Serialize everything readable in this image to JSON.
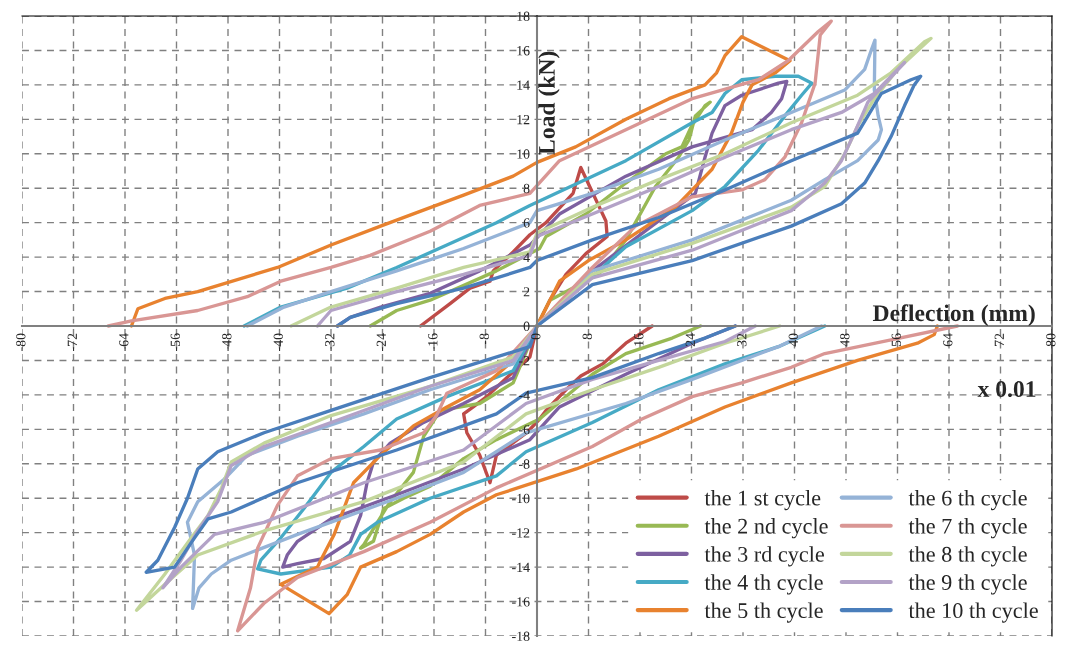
{
  "chart_data": {
    "type": "line",
    "xlabel": "Deflection (mm)",
    "ylabel": "Load (kN)",
    "annotations": [
      "x 0.01"
    ],
    "xlim": [
      -80,
      80
    ],
    "ylim": [
      -18,
      18
    ],
    "xticks": [
      -80,
      -72,
      -64,
      -56,
      -48,
      -40,
      -32,
      -24,
      -16,
      -8,
      0,
      8,
      16,
      24,
      32,
      40,
      48,
      56,
      64,
      72,
      80
    ],
    "yticks": [
      -18,
      -16,
      -14,
      -12,
      -10,
      -8,
      -6,
      -4,
      -2,
      0,
      2,
      4,
      6,
      8,
      10,
      12,
      14,
      16,
      18
    ],
    "grid": true,
    "legend": "bottom right",
    "series": [
      {
        "name": "the 1 st cycle",
        "color": "#be4b48",
        "x": [
          0,
          2,
          4.5,
          7.6,
          10.9,
          10.7,
          6.8,
          5.6,
          1.4,
          -1.1,
          -3.7,
          -6.8,
          -7.3,
          -10.4,
          -13.5,
          -18.1,
          null,
          0,
          -1.1,
          -4.7,
          -7.8,
          -9.9,
          -11.4,
          -10.9,
          -8.9,
          -7.3,
          -6.3,
          -1.6,
          0.4,
          1.4,
          4.5,
          6.8,
          10.2,
          13.8,
          17.9
        ],
        "values": [
          0,
          1.5,
          3.0,
          4.2,
          5.2,
          6.1,
          9.2,
          7.7,
          6.0,
          5.3,
          4.3,
          3.2,
          2.6,
          2.2,
          1.3,
          0,
          null,
          0,
          -1.8,
          -3,
          -4.1,
          -4.7,
          -5.1,
          -6.2,
          -7.5,
          -9.1,
          -7.5,
          -6.2,
          -5.4,
          -4.9,
          -3.7,
          -2.9,
          -2.2,
          -1.0,
          0
        ]
      },
      {
        "name": "the 2 nd cycle",
        "color": "#98b954",
        "x": [
          0,
          2,
          9.6,
          13.8,
          18.4,
          22,
          23.6,
          24.6,
          26.9,
          26.1,
          24,
          22.5,
          20,
          13.8,
          7.6,
          1.4,
          0.4,
          -6.3,
          -16.6,
          -21.8,
          -25.9,
          null,
          0,
          -3.7,
          -8.9,
          -15,
          -17.6,
          -19.2,
          -22.8,
          -24.8,
          -26.9,
          -27.4,
          -25.4,
          -23.8,
          -20.7,
          -16.6,
          -11.4,
          -6.3,
          0.4,
          8.6,
          13.8,
          21,
          25.4
        ],
        "values": [
          0,
          1.5,
          3.0,
          5.0,
          8.1,
          9.8,
          10.8,
          12.2,
          13.0,
          12.8,
          11.6,
          10.4,
          10,
          8.3,
          6.5,
          5.2,
          4.5,
          3.2,
          1.5,
          0.9,
          0,
          null,
          0,
          -3.3,
          -4.5,
          -4.9,
          -6.4,
          -8.5,
          -10.2,
          -11.4,
          -12.7,
          -12.9,
          -12.5,
          -10.6,
          -10,
          -9.3,
          -7.7,
          -6.6,
          -5.4,
          -2.8,
          -1.6,
          -0.7,
          0
        ]
      },
      {
        "name": "the 3 rd cycle",
        "color": "#7d60a0",
        "x": [
          0,
          8.6,
          18.9,
          24.6,
          26.1,
          27.2,
          29.2,
          31.8,
          37.5,
          38.8,
          38,
          36.4,
          33.4,
          24.1,
          13.8,
          3.5,
          -1.1,
          -8.9,
          -16.6,
          -24.3,
          -29,
          -31,
          null,
          0,
          -3.7,
          -11.4,
          -17.6,
          -22.8,
          -25.4,
          -26.4,
          -27.4,
          -29,
          -33.1,
          -37.2,
          -39.5,
          -38.8,
          -37.2,
          -32,
          -21.8,
          -11.4,
          -1.1,
          3.5,
          13.8,
          24.1,
          30.8
        ],
        "values": [
          0,
          3.2,
          6.1,
          7.7,
          9.8,
          11.2,
          12.8,
          13.4,
          14.1,
          14.2,
          13.2,
          12.4,
          11.4,
          10.4,
          8.7,
          6.5,
          4.7,
          3.2,
          1.9,
          1.1,
          0.5,
          0,
          null,
          0,
          -3,
          -4.5,
          -5.6,
          -6.8,
          -7.9,
          -9.1,
          -11,
          -12.5,
          -13.5,
          -13.8,
          -14.0,
          -13.3,
          -12.5,
          -11.2,
          -9.8,
          -8.3,
          -6.6,
          -4.7,
          -2.8,
          -1,
          0
        ]
      },
      {
        "name": "the 4 th cycle",
        "color": "#46aac5",
        "x": [
          0,
          13.8,
          24.1,
          29.2,
          34.4,
          38.5,
          41.1,
          42.7,
          40.6,
          37,
          31.8,
          29.2,
          27.2,
          24.1,
          13.8,
          -1.1,
          -6.3,
          -14,
          -21.8,
          -29.5,
          -39.8,
          -45.5,
          null,
          0,
          -3.7,
          -14,
          -21.8,
          -26.9,
          -32,
          -36.2,
          -39.8,
          -42.9,
          -43.4,
          -39.8,
          -32,
          -29.1,
          -27.4,
          -24.8,
          -16.6,
          -6.3,
          -1.7,
          8.6,
          18.9,
          29.2,
          37.5,
          44.7
        ],
        "values": [
          0,
          4.6,
          6.7,
          8.1,
          10.2,
          12.2,
          13.4,
          14.1,
          14.5,
          14.5,
          14.3,
          13.5,
          12.4,
          11.8,
          9.6,
          7.0,
          6.0,
          4.7,
          3.4,
          2.2,
          1.1,
          0,
          null,
          0,
          -2.6,
          -4.1,
          -5.4,
          -7,
          -8.5,
          -10.6,
          -12.3,
          -13.6,
          -14.1,
          -14.4,
          -14,
          -13.3,
          -12.1,
          -11.4,
          -10,
          -8.7,
          -7.3,
          -5.6,
          -3.7,
          -2.2,
          -1.2,
          0
        ]
      },
      {
        "name": "the 5 th cycle",
        "color": "#e8822f",
        "x": [
          0,
          3.5,
          8,
          13.8,
          21.5,
          27.2,
          30.2,
          32,
          33.4,
          37,
          39.3,
          31.8,
          29.2,
          27.9,
          26.1,
          20.5,
          13.8,
          6,
          0,
          -3.7,
          -11.4,
          -24.3,
          -32,
          -40.3,
          -52.7,
          -57.8,
          -62,
          -63,
          null,
          0,
          -3.7,
          -8.9,
          -14,
          -19.2,
          -24.3,
          -28.5,
          -30,
          -31.5,
          -33.6,
          -34.1,
          -39.8,
          -32.3,
          -29.5,
          -27.4,
          -21.8,
          -16.6,
          -11.4,
          -6.3,
          6.1,
          18.9,
          29.2,
          39.5,
          49.8,
          59.1,
          61.7,
          62.2
        ],
        "values": [
          0,
          2.6,
          3.8,
          5.0,
          6.9,
          9.1,
          11.2,
          13,
          14,
          14.7,
          15.4,
          16.8,
          15.7,
          14.7,
          14,
          13.2,
          12,
          10.4,
          9.5,
          8.7,
          7.6,
          5.8,
          4.7,
          3.4,
          2,
          1.6,
          1,
          0,
          null,
          0,
          -2,
          -3.7,
          -4.7,
          -5.8,
          -7.5,
          -9.1,
          -10.6,
          -12.1,
          -13.6,
          -14,
          -15,
          -16.7,
          -15.6,
          -14,
          -13.1,
          -12.1,
          -10.8,
          -9.8,
          -8.3,
          -6.4,
          -4.7,
          -3.3,
          -2,
          -1,
          -0.5,
          0
        ]
      },
      {
        "name": "the 6 th cycle",
        "color": "#95b3d7",
        "x": [
          0,
          8.6,
          24.1,
          39.5,
          44.7,
          49.8,
          53,
          53.5,
          53,
          52.4,
          52.5,
          52,
          50.9,
          47.8,
          39.5,
          29.2,
          18.9,
          8.6,
          0,
          -1.1,
          -11.4,
          -21.8,
          -32,
          -39.3,
          -45,
          null,
          0,
          -3.7,
          -16.6,
          -26.9,
          -37.2,
          -45,
          -48.6,
          -52.7,
          -54.3,
          -53.2,
          -53.5,
          -52.5,
          -50.6,
          -47.5,
          -37.2,
          -21.8,
          -11.4,
          -1.7,
          13.8,
          24.1,
          31.8,
          37.5,
          44.2
        ],
        "values": [
          0,
          3.2,
          5,
          7.3,
          8.5,
          9.6,
          10.8,
          11.4,
          12.2,
          13.7,
          16.6,
          16.1,
          14.9,
          13.7,
          12.4,
          10.8,
          9.1,
          7.7,
          6.7,
          6,
          4.5,
          3.2,
          2,
          1.1,
          0,
          null,
          0,
          -2.2,
          -3.7,
          -5.1,
          -6.4,
          -7.5,
          -8.9,
          -10.2,
          -11.4,
          -13.3,
          -16.4,
          -15.2,
          -14.4,
          -13.6,
          -12.1,
          -10,
          -8.5,
          -6.2,
          -4.5,
          -3.1,
          -2,
          -1.2,
          0
        ]
      },
      {
        "name": "the 7 th cycle",
        "color": "#d99694",
        "x": [
          0,
          8.6,
          15.3,
          24.1,
          31.8,
          35.4,
          38.5,
          41.1,
          43.2,
          44,
          45.7,
          43.7,
          39,
          34.4,
          24.1,
          13.8,
          3.5,
          -1.1,
          -8.9,
          -16.6,
          -25.9,
          -32,
          -39.8,
          -45,
          -52.7,
          -63,
          -66.6,
          null,
          0,
          -6.3,
          -14,
          -15.6,
          -17.6,
          -24.3,
          -32,
          -37.2,
          -40.3,
          -43.4,
          -44.5,
          -46.5,
          -42.4,
          -37.2,
          -26.9,
          -16.6,
          -6.3,
          8.6,
          16.3,
          24.1,
          31.8,
          39.5,
          44.7,
          55,
          65.3
        ],
        "values": [
          0,
          3.4,
          5.8,
          7.5,
          7.9,
          8.5,
          9.8,
          11.8,
          14.1,
          16.9,
          17.7,
          17.1,
          15.4,
          14.3,
          13.2,
          11.4,
          9.6,
          7.7,
          7,
          5.5,
          4.1,
          3.4,
          2.6,
          1.7,
          0.9,
          0.3,
          0,
          null,
          0,
          -2.6,
          -3.9,
          -5.2,
          -6.2,
          -7.2,
          -7.7,
          -8.7,
          -10.4,
          -12.9,
          -15.2,
          -17.7,
          -16.1,
          -14.6,
          -13.1,
          -11.4,
          -9.4,
          -7,
          -5.4,
          -4.1,
          -3.3,
          -2.4,
          -1.6,
          -0.8,
          0
        ]
      },
      {
        "name": "the 8 th cycle",
        "color": "#c3d69b",
        "x": [
          0,
          8.6,
          24.1,
          39.5,
          44.7,
          47.8,
          49.8,
          52.4,
          56,
          61.2,
          60.2,
          55,
          49.8,
          39.5,
          29.2,
          18.9,
          8.6,
          0,
          -1.1,
          -11.4,
          -21.8,
          -32,
          -38.2,
          null,
          0,
          -3.7,
          -16.6,
          -32,
          -42.4,
          -47.5,
          -49,
          -51.1,
          -53.7,
          -57.8,
          -62.2,
          -57.8,
          -52.7,
          -42.4,
          -26.9,
          -11.4,
          -1.7,
          8.6,
          18.9,
          29.2,
          37.7
        ],
        "values": [
          0,
          3,
          4.8,
          6.9,
          8.1,
          10,
          11.6,
          13.2,
          14.9,
          16.7,
          16.5,
          14.7,
          13.4,
          11.8,
          10,
          8.5,
          6.9,
          5.4,
          4.3,
          3.4,
          2.2,
          1.1,
          0,
          null,
          0,
          -1.8,
          -3.5,
          -5.2,
          -6.8,
          -7.9,
          -9.4,
          -11,
          -12.3,
          -14.4,
          -16.5,
          -15,
          -13.3,
          -11.9,
          -10.2,
          -7.9,
          -5.1,
          -3.7,
          -2.4,
          -1,
          0
        ]
      },
      {
        "name": "the 9 th cycle",
        "color": "#b3a2c7",
        "x": [
          0,
          8.6,
          24.1,
          39.5,
          44.7,
          47.3,
          49.3,
          51.4,
          57.1,
          52.4,
          47.3,
          39.5,
          29.2,
          18.9,
          8.6,
          0,
          -1.1,
          -11.4,
          -21.8,
          -32,
          -34.1,
          null,
          0,
          -3.7,
          -16.6,
          -32,
          -42.4,
          -47.5,
          -49.6,
          -52.7,
          -55.3,
          -58.1,
          -55.3,
          -50.1,
          -42.4,
          -26.9,
          -11.4,
          -1.7,
          8.6,
          18.9,
          29.2,
          33.9
        ],
        "values": [
          0,
          2.8,
          4.4,
          6.7,
          8.3,
          9.6,
          11.2,
          13,
          15.3,
          13.5,
          12.4,
          11.4,
          9.8,
          8.1,
          6.5,
          5.2,
          4.1,
          3,
          2,
          0.9,
          0,
          null,
          0,
          -2,
          -3.5,
          -5.6,
          -7,
          -8.1,
          -10.2,
          -11.9,
          -13.6,
          -15.2,
          -14,
          -12.1,
          -11.4,
          -9.1,
          -7.2,
          -4.5,
          -3.1,
          -2,
          -0.9,
          0
        ]
      },
      {
        "name": "the 10 th cycle",
        "color": "#4a7ebb",
        "x": [
          0,
          8.6,
          24.1,
          39.5,
          47.3,
          50.9,
          53,
          55,
          57.1,
          58.6,
          59.6,
          58.1,
          53.5,
          49.8,
          39.5,
          29.2,
          18.9,
          8.6,
          0,
          -1.1,
          -11.4,
          -21.8,
          -29,
          -31,
          null,
          0,
          -1.1,
          -16.6,
          -32,
          -42.4,
          -49.6,
          -52.7,
          -54.3,
          -56.3,
          -58.9,
          -60.7,
          -56.3,
          -53.2,
          -51.1,
          -47.5,
          -37.2,
          -21.8,
          -6.3,
          -1.7,
          8.6,
          18.9,
          26.1,
          30.8
        ],
        "values": [
          0,
          2.4,
          3.8,
          5.8,
          7.1,
          8.3,
          9.6,
          11,
          12.8,
          14,
          14.5,
          14.3,
          13.5,
          11.2,
          9.6,
          7.9,
          6.3,
          5,
          3.8,
          3.4,
          2.2,
          1.3,
          0.5,
          0,
          null,
          0,
          -1.2,
          -3,
          -4.9,
          -6.2,
          -7.3,
          -8.3,
          -10,
          -11.7,
          -13.6,
          -14.3,
          -14,
          -12.3,
          -11.2,
          -10.8,
          -9.1,
          -7.2,
          -5.1,
          -3.9,
          -3,
          -1.6,
          -0.7,
          0
        ]
      }
    ]
  }
}
